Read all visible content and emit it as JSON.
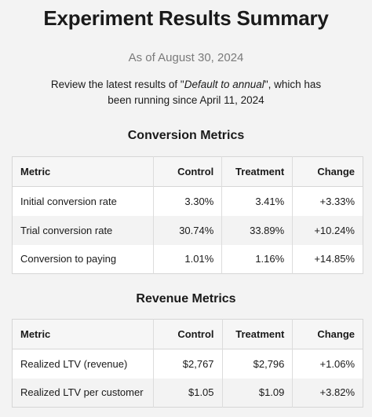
{
  "title": "Experiment Results Summary",
  "as_of": "As of August 30, 2024",
  "description": {
    "prefix": "Review the latest results of \"",
    "experiment_name": "Default to annual",
    "suffix": "\", which has been running since April 11, 2024"
  },
  "conversion": {
    "section_title": "Conversion Metrics",
    "headers": [
      "Metric",
      "Control",
      "Treatment",
      "Change"
    ],
    "rows": [
      {
        "metric": "Initial conversion rate",
        "control": "3.30%",
        "treatment": "3.41%",
        "change": "+3.33%"
      },
      {
        "metric": "Trial conversion rate",
        "control": "30.74%",
        "treatment": "33.89%",
        "change": "+10.24%"
      },
      {
        "metric": "Conversion to paying",
        "control": "1.01%",
        "treatment": "1.16%",
        "change": "+14.85%"
      }
    ]
  },
  "revenue": {
    "section_title": "Revenue Metrics",
    "headers": [
      "Metric",
      "Control",
      "Treatment",
      "Change"
    ],
    "rows": [
      {
        "metric": "Realized LTV (revenue)",
        "control": "$2,767",
        "treatment": "$2,796",
        "change": "+1.06%"
      },
      {
        "metric": "Realized LTV per customer",
        "control": "$1.05",
        "treatment": "$1.09",
        "change": "+3.82%"
      }
    ]
  },
  "colors": {
    "positive_change": "#2e8b2e",
    "muted_text": "#7a7a7a",
    "background": "#f3f3f3"
  }
}
